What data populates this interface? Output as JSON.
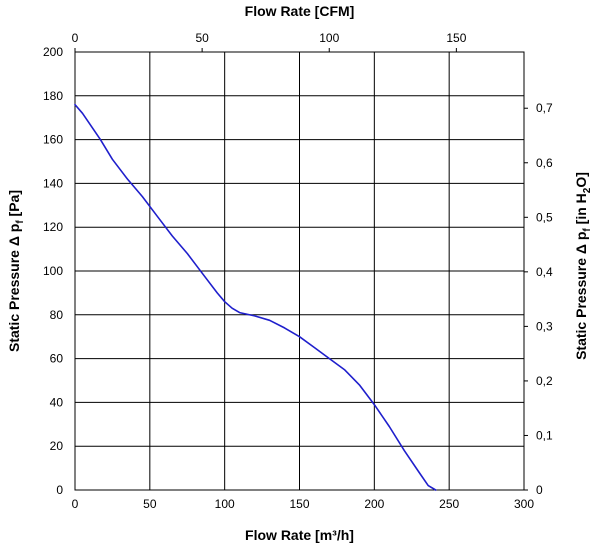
{
  "chart_data": {
    "type": "line",
    "title": "",
    "xlabel": "Flow Rate [m³/h]",
    "x2label": "Flow Rate [CFM]",
    "ylabel_prefix": "Static Pressure Δ p",
    "ylabel_sub": "f",
    "ylabel_unit": " [Pa]",
    "y2label_prefix": "Static Pressure Δ p",
    "y2label_sub": "f",
    "y2label_unit_pre": " [in H",
    "y2label_unit_sub": "2",
    "y2label_unit_post": "O]",
    "xlim": [
      0,
      300
    ],
    "ylim": [
      0,
      200
    ],
    "x2lim": [
      0,
      176.6
    ],
    "y2lim": [
      0,
      0.8031
    ],
    "x_ticks": [
      {
        "value": 0,
        "label": "0"
      },
      {
        "value": 50,
        "label": "50"
      },
      {
        "value": 100,
        "label": "100"
      },
      {
        "value": 150,
        "label": "150"
      },
      {
        "value": 200,
        "label": "200"
      },
      {
        "value": 250,
        "label": "250"
      },
      {
        "value": 300,
        "label": "300"
      }
    ],
    "y_ticks": [
      {
        "value": 0,
        "label": "0"
      },
      {
        "value": 20,
        "label": "20"
      },
      {
        "value": 40,
        "label": "40"
      },
      {
        "value": 60,
        "label": "60"
      },
      {
        "value": 80,
        "label": "80"
      },
      {
        "value": 100,
        "label": "100"
      },
      {
        "value": 120,
        "label": "120"
      },
      {
        "value": 140,
        "label": "140"
      },
      {
        "value": 160,
        "label": "160"
      },
      {
        "value": 180,
        "label": "180"
      },
      {
        "value": 200,
        "label": "200"
      }
    ],
    "x2_ticks": [
      {
        "value": 0,
        "label": "0"
      },
      {
        "value": 50,
        "label": "50"
      },
      {
        "value": 100,
        "label": "100"
      },
      {
        "value": 150,
        "label": "150"
      }
    ],
    "y2_ticks": [
      {
        "value": 0,
        "label": "0"
      },
      {
        "value": 0.1,
        "label": "0,1"
      },
      {
        "value": 0.2,
        "label": "0,2"
      },
      {
        "value": 0.3,
        "label": "0,3"
      },
      {
        "value": 0.4,
        "label": "0,4"
      },
      {
        "value": 0.5,
        "label": "0,5"
      },
      {
        "value": 0.6,
        "label": "0,6"
      },
      {
        "value": 0.7,
        "label": "0,7"
      }
    ],
    "grid": true,
    "series": [
      {
        "color": "#1f1fcc",
        "x": [
          0,
          5,
          10,
          17,
          25,
          35,
          45,
          55,
          65,
          75,
          85,
          95,
          100,
          105,
          110,
          120,
          130,
          140,
          150,
          160,
          170,
          180,
          190,
          200,
          210,
          220,
          230,
          236,
          241
        ],
        "y": [
          176,
          172,
          167,
          160,
          151,
          142,
          134,
          125,
          116,
          108,
          99,
          90,
          86,
          83,
          81,
          79.5,
          77.5,
          74,
          70,
          65,
          60,
          55,
          48,
          39,
          29,
          18,
          8,
          2,
          0
        ]
      }
    ]
  }
}
